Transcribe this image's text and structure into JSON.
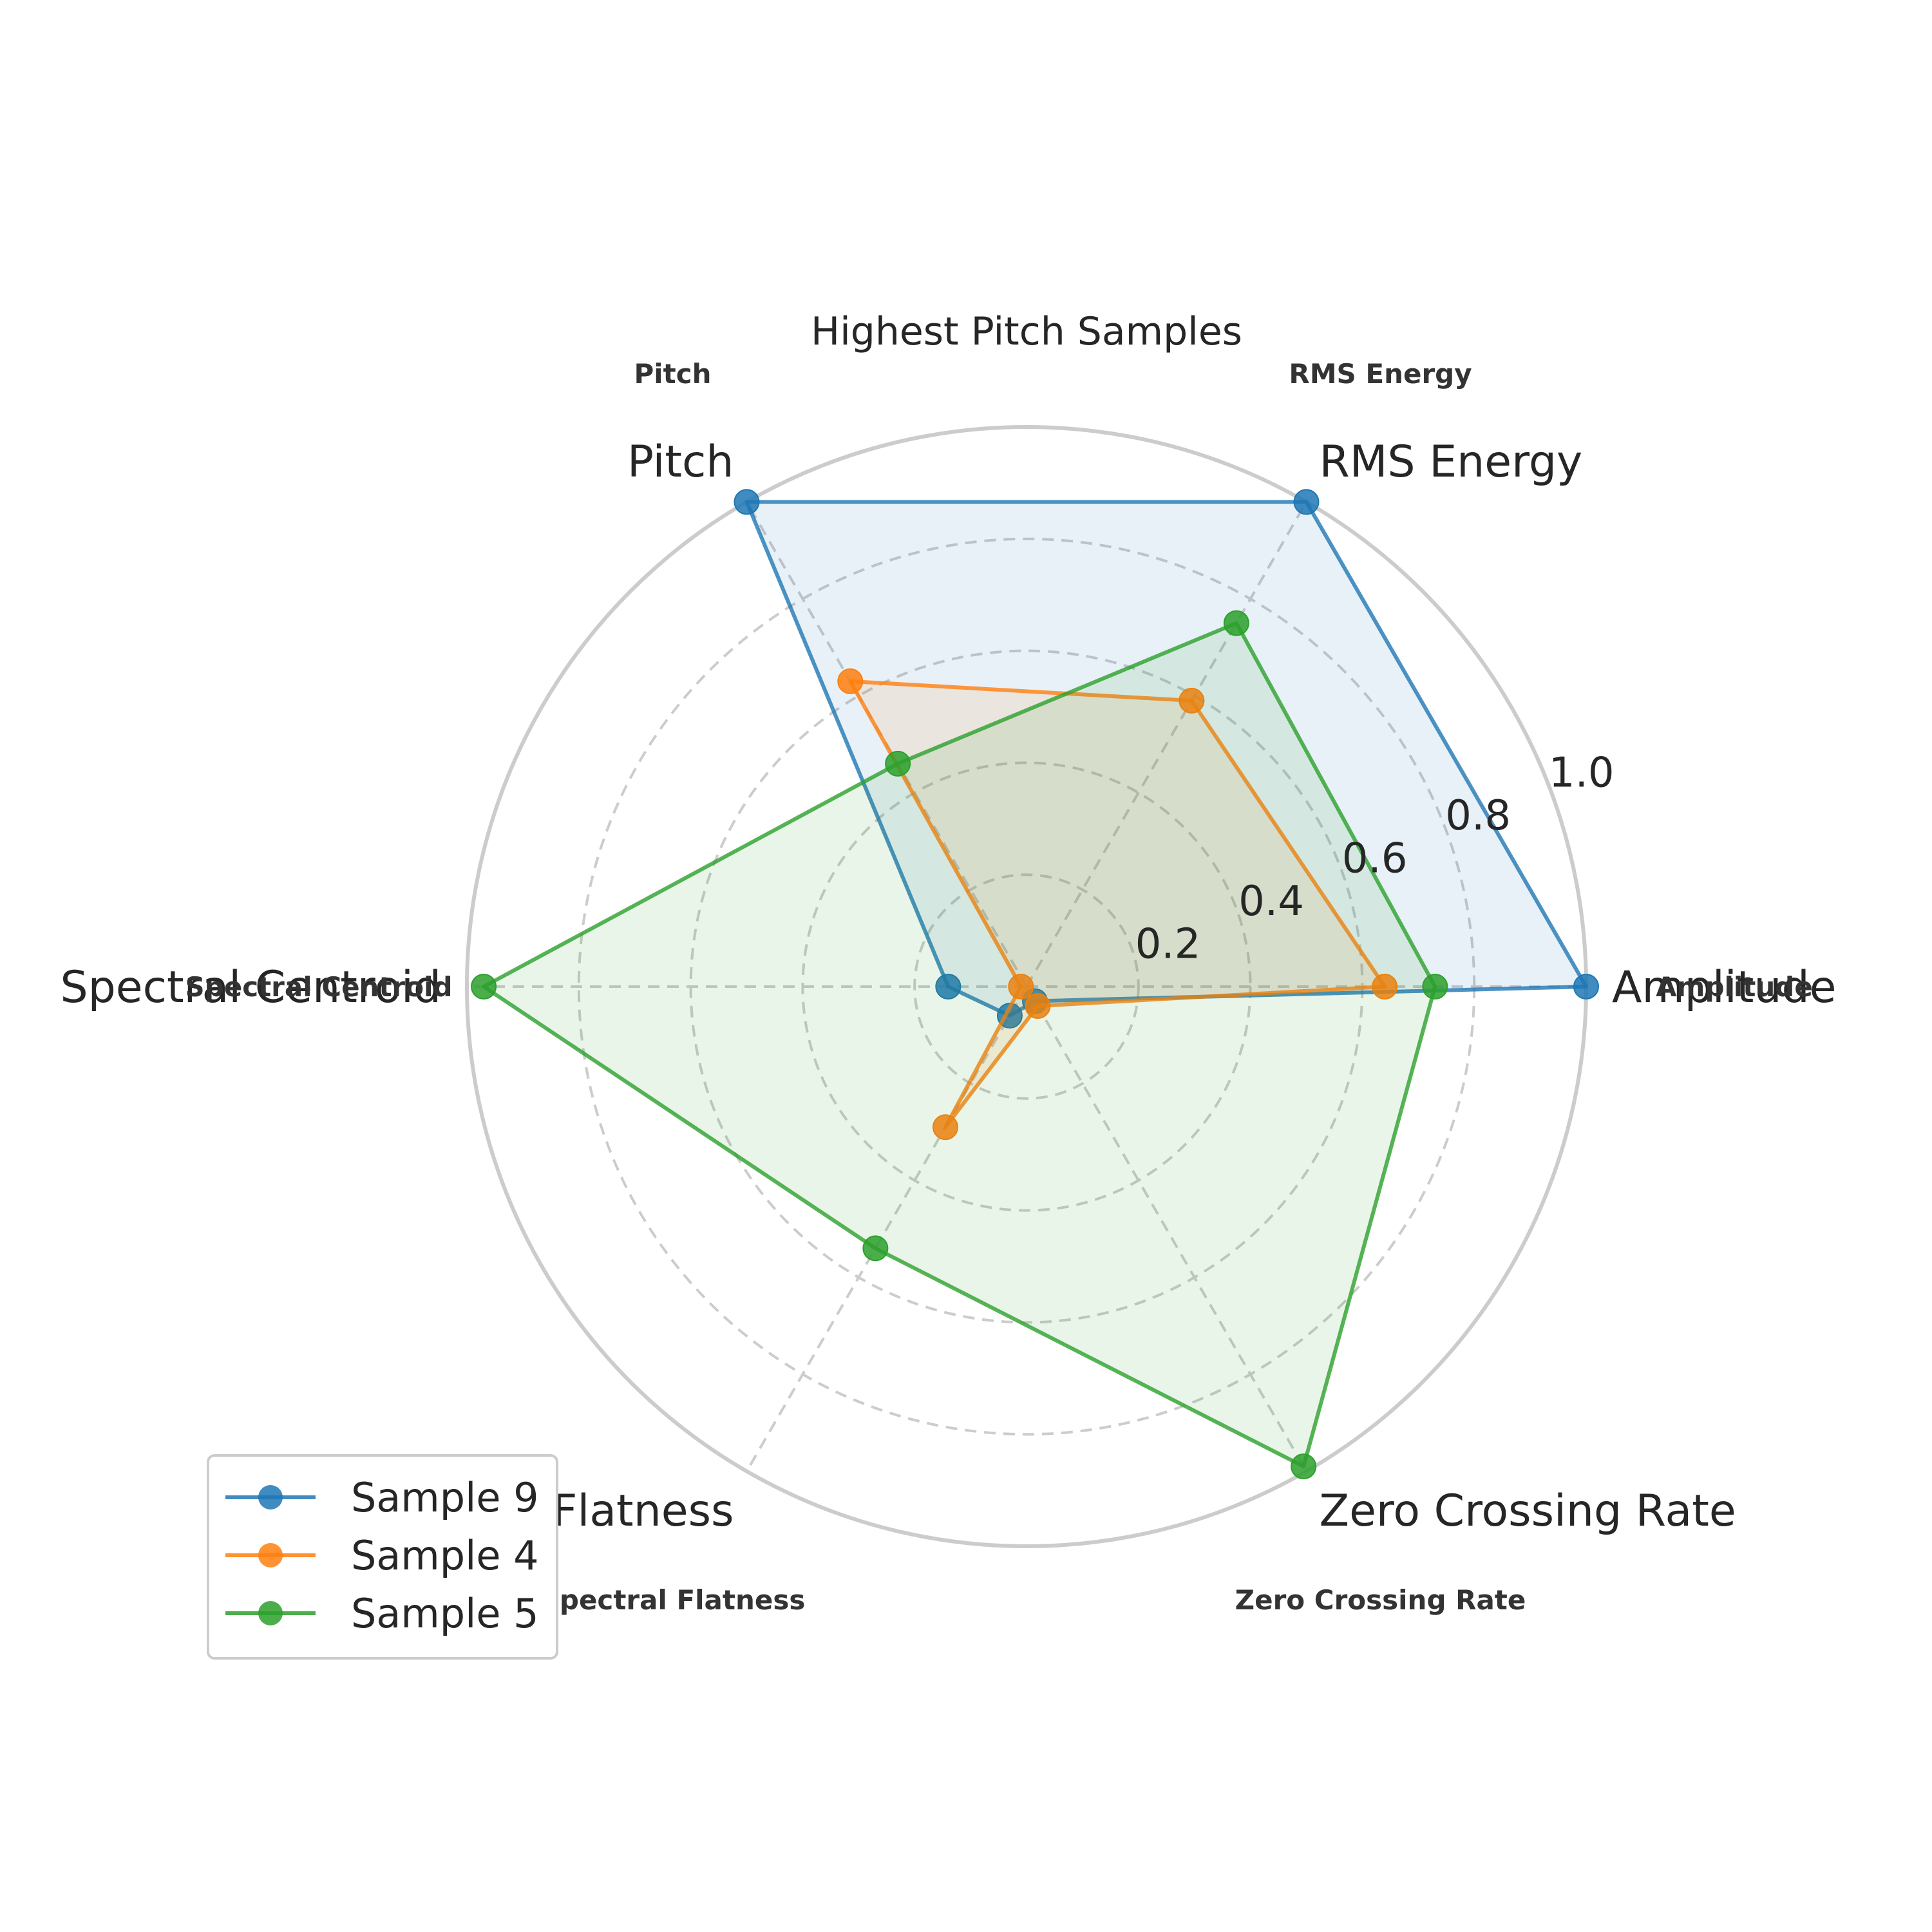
{
  "chart_data": {
    "type": "radar",
    "title": "Highest Pitch Samples",
    "axes": [
      "Amplitude",
      "RMS Energy",
      "Pitch",
      "Spectral Centroid",
      "Spectral Flatness",
      "Zero Crossing Rate"
    ],
    "rlim": [
      0,
      1.0
    ],
    "r_ticks": [
      0.2,
      0.4,
      0.6,
      0.8,
      1.0
    ],
    "r_tick_labels": [
      "0.2",
      "0.4",
      "0.6",
      "0.8",
      "1.0"
    ],
    "grid": true,
    "legend_position": "lower-left",
    "series": [
      {
        "name": "Sample 9",
        "color": "#1f77b4",
        "values": [
          1.0,
          1.0,
          1.0,
          0.14,
          0.06,
          0.03
        ]
      },
      {
        "name": "Sample 4",
        "color": "#ff7f0e",
        "values": [
          0.64,
          0.59,
          0.63,
          0.01,
          0.29,
          0.04
        ]
      },
      {
        "name": "Sample 5",
        "color": "#2ca02c",
        "values": [
          0.73,
          0.75,
          0.46,
          0.97,
          0.54,
          0.99
        ]
      }
    ]
  }
}
